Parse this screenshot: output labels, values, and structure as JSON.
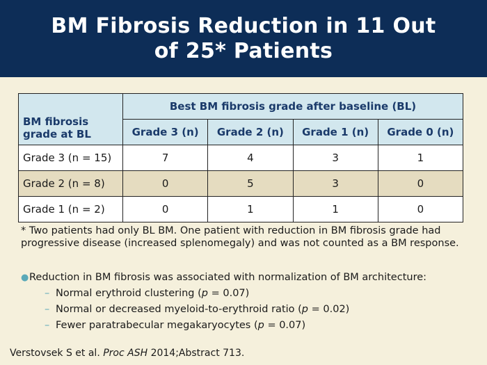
{
  "header": {
    "title_line1": "BM Fibrosis Reduction in 11 Out",
    "title_line2": "of 25* Patients"
  },
  "table": {
    "row_header": "BM fibrosis grade at BL",
    "group_header": "Best BM fibrosis grade after baseline (BL)",
    "columns": [
      "Grade 3 (n)",
      "Grade 2 (n)",
      "Grade 1 (n)",
      "Grade 0 (n)"
    ],
    "rows": [
      {
        "label": "Grade 3 (n = 15)",
        "values": [
          "7",
          "4",
          "3",
          "1"
        ]
      },
      {
        "label": "Grade 2 (n = 8)",
        "values": [
          "0",
          "5",
          "3",
          "0"
        ]
      },
      {
        "label": "Grade 1 (n = 2)",
        "values": [
          "0",
          "1",
          "1",
          "0"
        ]
      }
    ]
  },
  "footnote": "* Two patients had only BL BM. One patient with reduction in BM fibrosis grade had progressive disease (increased splenomegaly) and was not counted as a BM response.",
  "bullet": {
    "text": "Reduction in BM fibrosis was associated with normalization of BM architecture:",
    "subitems": [
      {
        "prefix": "Normal erythroid clustering (",
        "p": "p",
        "suffix": " = 0.07)"
      },
      {
        "prefix": "Normal or decreased myeloid-to-erythroid ratio (",
        "p": "p",
        "suffix": " = 0.02)"
      },
      {
        "prefix": "Fewer paratrabecular megakaryocytes (",
        "p": "p",
        "suffix": " = 0.07)"
      }
    ]
  },
  "citation": {
    "authors": "Verstovsek S et al. ",
    "journal": "Proc ASH",
    "rest": " 2014;Abstract 713."
  },
  "colors": {
    "header_bg": "#0d2d57",
    "table_header_bg": "#d2e7ee",
    "shaded_row_bg": "#e5dcc0",
    "page_bg": "#f5f0dc",
    "bullet_accent": "#5aa9b8"
  }
}
